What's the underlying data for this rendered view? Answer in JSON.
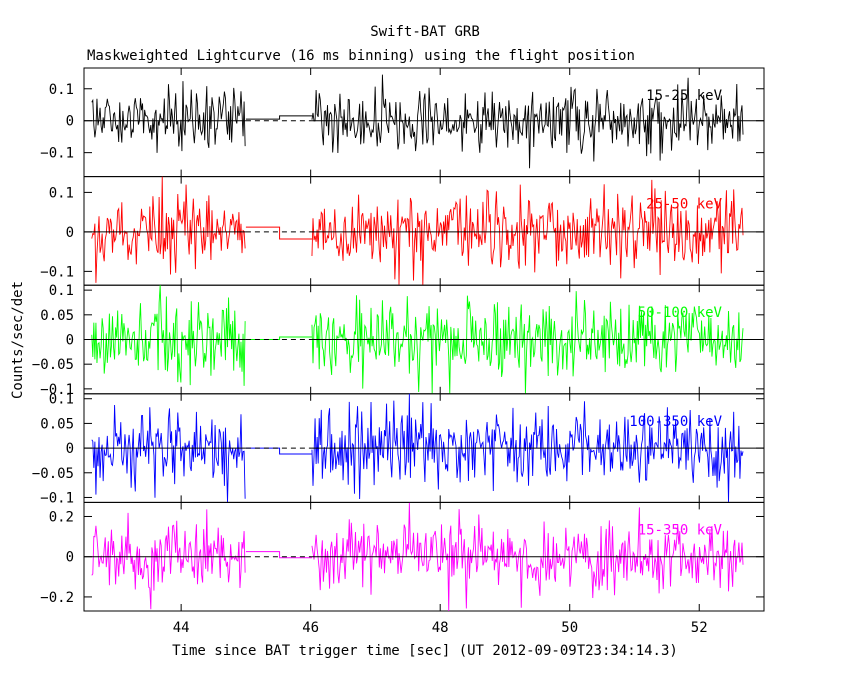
{
  "figure": {
    "title": "Swift-BAT GRB",
    "subtitle": "Maskweighted Lightcurve (16 ms binning) using the flight position",
    "ylabel": "Counts/sec/det",
    "xlabel": "Time since BAT trigger time [sec] (UT 2012-09-09T23:34:14.3)"
  },
  "chart_data": {
    "type": "line",
    "xlim": [
      42.5,
      53.0
    ],
    "x_ticks": [
      44,
      46,
      48,
      50,
      52
    ],
    "x_tick_labels": [
      "44",
      "46",
      "48",
      "50",
      "52"
    ],
    "bin_width_s": 0.016,
    "data_segments": [
      [
        42.62,
        45.0
      ],
      [
        46.02,
        52.68
      ]
    ],
    "gap_steps": [
      {
        "x": [
          45.0,
          45.52
        ],
        "panel_levels": [
          0.005,
          0.012,
          0.0,
          0.0,
          0.025
        ]
      },
      {
        "x": [
          45.52,
          46.02
        ],
        "panel_levels": [
          0.015,
          -0.018,
          0.005,
          -0.012,
          -0.005
        ]
      }
    ],
    "panels": [
      {
        "label": "15-25 keV",
        "color": "#000000",
        "ylim": [
          -0.175,
          0.165
        ],
        "yticks": [
          -0.1,
          0,
          0.1
        ],
        "ytick_labels": [
          "−0.1",
          "0",
          "0.1"
        ],
        "noise_amplitude": 0.05
      },
      {
        "label": "25-50 keV",
        "color": "#ff0000",
        "ylim": [
          -0.135,
          0.14
        ],
        "yticks": [
          -0.1,
          0,
          0.1
        ],
        "ytick_labels": [
          "−0.1",
          "0",
          "0.1"
        ],
        "noise_amplitude": 0.045
      },
      {
        "label": "50-100 keV",
        "color": "#00ff00",
        "ylim": [
          -0.11,
          0.11
        ],
        "yticks": [
          -0.1,
          -0.05,
          0,
          0.05,
          0.1
        ],
        "ytick_labels": [
          "−0.1",
          "−0.05",
          "0",
          "0.05",
          "0.1"
        ],
        "noise_amplitude": 0.04
      },
      {
        "label": "100-350 keV",
        "color": "#0000ff",
        "ylim": [
          -0.11,
          0.11
        ],
        "yticks": [
          -0.1,
          -0.05,
          0,
          0.05,
          0.1
        ],
        "ytick_labels": [
          "−0.1",
          "−0.05",
          "0",
          "0.05",
          "0.1"
        ],
        "noise_amplitude": 0.038
      },
      {
        "label": "15-350 keV",
        "color": "#ff00ff",
        "ylim": [
          -0.27,
          0.27
        ],
        "yticks": [
          -0.2,
          0,
          0.2
        ],
        "ytick_labels": [
          "−0.2",
          "0",
          "0.2"
        ],
        "noise_amplitude": 0.085
      }
    ]
  }
}
